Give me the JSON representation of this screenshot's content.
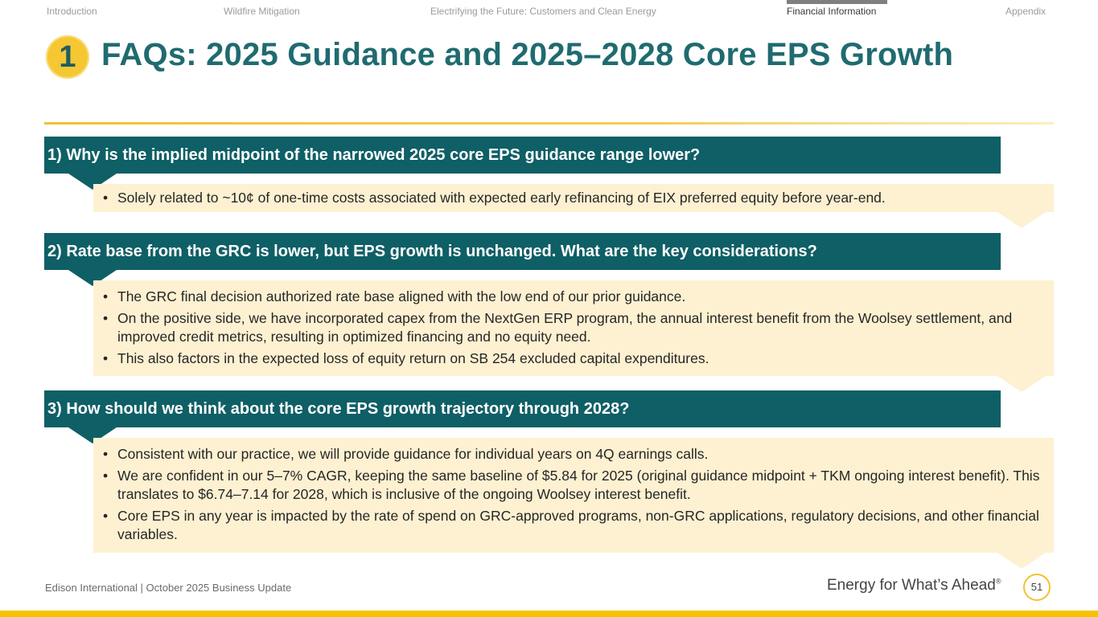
{
  "nav": {
    "items": [
      {
        "label": "Introduction",
        "active": false
      },
      {
        "label": "Wildfire Mitigation",
        "active": false
      },
      {
        "label": "Electrifying the Future: Customers and Clean Energy",
        "active": false
      },
      {
        "label": "Financial Information",
        "active": true
      },
      {
        "label": "Appendix",
        "active": false
      }
    ]
  },
  "header": {
    "badge": "1",
    "title": "FAQs: 2025 Guidance and 2025–2028 Core EPS Growth"
  },
  "faqs": [
    {
      "question": "1) Why is the implied midpoint of the narrowed 2025 core EPS guidance range lower?",
      "answers": [
        "Solely related to ~10¢ of one-time costs associated with expected early refinancing of EIX preferred equity before year-end."
      ]
    },
    {
      "question": "2) Rate base from the GRC is lower, but EPS growth is unchanged. What are the key considerations?",
      "answers": [
        "The GRC final decision authorized rate base aligned with the low end of our prior guidance.",
        "On the positive side, we have incorporated capex from the NextGen ERP program, the annual interest benefit from the Woolsey settlement, and improved credit metrics, resulting in optimized financing and no equity need.",
        "This also factors in the expected loss of equity return on SB 254 excluded capital expenditures."
      ]
    },
    {
      "question": "3) How should we think about the core EPS growth trajectory through 2028?",
      "answers": [
        "Consistent with our practice, we will provide guidance for individual years on 4Q earnings calls.",
        "We are confident in our 5–7% CAGR, keeping the same baseline of $5.84 for 2025 (original guidance midpoint + TKM ongoing interest benefit). This translates to $6.74–7.14 for 2028, which is inclusive of the ongoing Woolsey interest benefit.",
        "Core EPS in any year is impacted by the rate of spend on GRC-approved programs, non-GRC applications, regulatory decisions, and other financial variables."
      ]
    }
  ],
  "footer": {
    "left": "Edison International |  October 2025 Business Update",
    "tagline": "Energy for What’s Ahead",
    "tagline_mark": "®",
    "page_number": "51"
  },
  "colors": {
    "teal": "#0f5f66",
    "title_teal": "#1f6b70",
    "gold": "#f5c200",
    "answer_bg": "#fdf1d2"
  }
}
